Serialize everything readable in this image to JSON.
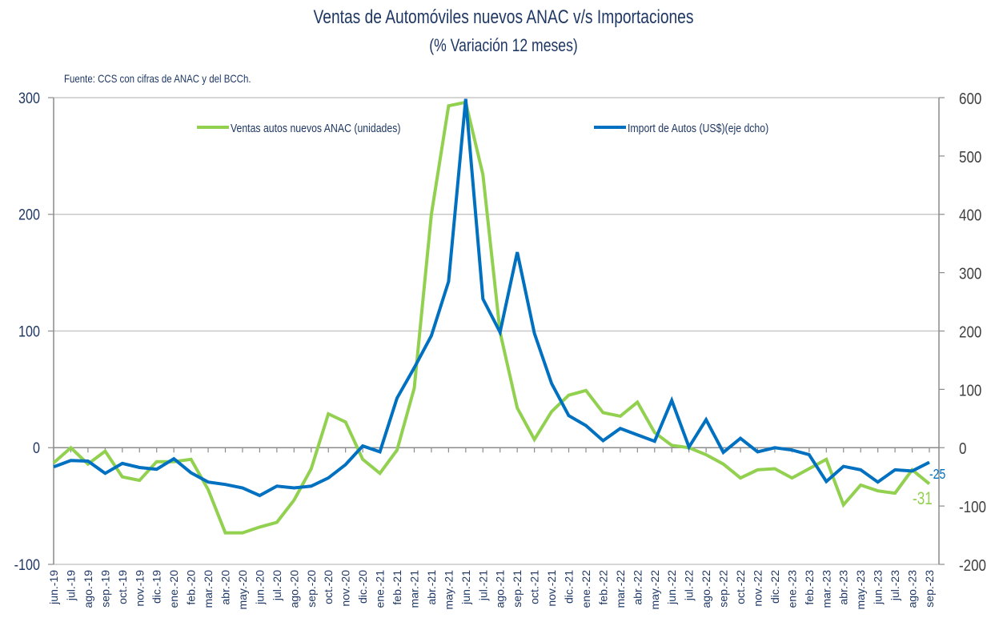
{
  "chart_data": {
    "type": "line",
    "title": "Ventas de Automóviles nuevos ANAC v/s Importaciones",
    "subtitle": "(% Variación 12 meses)",
    "source_note": "Fuente: CCS con cifras de ANAC y del BCCh.",
    "xlabel": "",
    "ylabel": "",
    "ylim_left": [
      -100,
      300
    ],
    "yticks_left": [
      -100,
      0,
      100,
      200,
      300
    ],
    "ylim_right": [
      -200,
      600
    ],
    "yticks_right": [
      -200,
      -100,
      0,
      100,
      200,
      300,
      400,
      500,
      600
    ],
    "grid": true,
    "legend_position": "top-inside",
    "categories": [
      "jun.-19",
      "jul.-19",
      "ago.-19",
      "sep.-19",
      "oct.-19",
      "nov.-19",
      "dic.-19",
      "ene.-20",
      "feb.-20",
      "mar.-20",
      "abr.-20",
      "may.-20",
      "jun.-20",
      "jul.-20",
      "ago.-20",
      "sep.-20",
      "oct.-20",
      "nov.-20",
      "dic.-20",
      "ene.-21",
      "feb.-21",
      "mar.-21",
      "abr.-21",
      "may.-21",
      "jun.-21",
      "jul.-21",
      "ago.-21",
      "sep.-21",
      "oct.-21",
      "nov.-21",
      "dic.-21",
      "ene.-22",
      "feb.-22",
      "mar.-22",
      "abr.-22",
      "may.-22",
      "jun.-22",
      "jul.-22",
      "ago.-22",
      "sep.-22",
      "oct.-22",
      "nov.-22",
      "dic.-22",
      "ene.-23",
      "feb.-23",
      "mar.-23",
      "abr.-23",
      "may.-23",
      "jun.-23",
      "jul.-23",
      "ago.-23",
      "sep.-23"
    ],
    "series": [
      {
        "name": "Ventas autos nuevos ANAC (unidades)",
        "axis": "left",
        "color": "#92d050",
        "end_label": "-31",
        "values": [
          -13,
          0,
          -14,
          -3,
          -25,
          -28,
          -12,
          -12,
          -10,
          -36,
          -73,
          -73,
          -68,
          -64,
          -45,
          -18,
          29,
          22,
          -10,
          -22,
          -2,
          51,
          200,
          293,
          296,
          234,
          99,
          34,
          7,
          31,
          45,
          49,
          30,
          27,
          39,
          13,
          2,
          0,
          -6,
          -14,
          -26,
          -19,
          -18,
          -26,
          -18,
          -10,
          -49,
          -32,
          -37,
          -39,
          -19,
          -31
        ]
      },
      {
        "name": "Import de Autos (US$)(eje dcho)",
        "axis": "right",
        "color": "#0070c0",
        "end_label": "-25",
        "values": [
          -33,
          -22,
          -23,
          -44,
          -27,
          -34,
          -37,
          -19,
          -43,
          -59,
          -63,
          -69,
          -82,
          -66,
          -69,
          -66,
          -52,
          -29,
          3,
          -7,
          85,
          137,
          192,
          285,
          598,
          255,
          198,
          335,
          196,
          110,
          55,
          38,
          12,
          33,
          22,
          11,
          81,
          1,
          48,
          -8,
          16,
          -7,
          0,
          -4,
          -12,
          -58,
          -32,
          -38,
          -59,
          -38,
          -40,
          -25
        ]
      }
    ]
  }
}
